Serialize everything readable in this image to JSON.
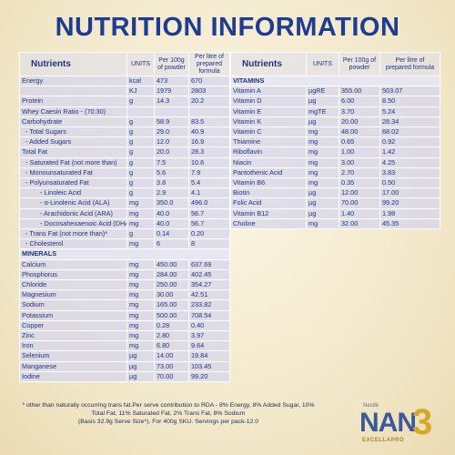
{
  "title": "NUTRITION INFORMATION",
  "left_table": {
    "headers": [
      "Nutrients",
      "UNITS",
      "Per 100g of powder",
      "Per litre of prepared formula"
    ],
    "rows": [
      [
        "Energy",
        "kcal",
        "473",
        "670"
      ],
      [
        null,
        "KJ",
        "1979",
        "2803"
      ],
      [
        "Protein",
        "g",
        "14.3",
        "20.2"
      ],
      [
        "Whey Caesin Ratio - (70:30)",
        null,
        null,
        null
      ],
      [
        "Carbohydrate",
        "g",
        "58.9",
        "83.5"
      ],
      [
        "- Total Sugars",
        "g",
        "29.0",
        "40.9"
      ],
      [
        "- Added Sugars",
        "g",
        "12.0",
        "16.9"
      ],
      [
        "Total Fat",
        "g",
        "20.0",
        "28.3"
      ],
      [
        "- Saturated Fat (not more than)",
        "g",
        "7.5",
        "10.6"
      ],
      [
        "- Monounsaturated Fat",
        "g",
        "5.6",
        "7.9"
      ],
      [
        "- Polyunsaturated Fat",
        "g",
        "3.8",
        "5.4"
      ],
      [
        "- Linoleic Acid",
        "g",
        "2.9",
        "4.1"
      ],
      [
        "- α-Linolenic Acid (ALA)",
        "mg",
        "350.0",
        "496.0"
      ],
      [
        "- Arachidonic Acid (ARA)",
        "mg",
        "40.0",
        "56.7"
      ],
      [
        "- Docosahexaenoic Acid (DHA)",
        "mg",
        "40.0",
        "56.7"
      ],
      [
        "- Trans Fat (not more than)*",
        "g",
        "0.14",
        "0.20"
      ],
      [
        "- Cholesterol",
        "mg",
        "6",
        "8"
      ],
      [
        "MINERALS"
      ],
      [
        "Calcium",
        "mg",
        "450.00",
        "637.69"
      ],
      [
        "Phosphorus",
        "mg",
        "284.00",
        "402.45"
      ],
      [
        "Chloride",
        "mg",
        "250.00",
        "354.27"
      ],
      [
        "Magnesium",
        "mg",
        "30.00",
        "42.51"
      ],
      [
        "Sodium",
        "mg",
        "165.00",
        "233.82"
      ],
      [
        "Potassium",
        "mg",
        "500.00",
        "708.54"
      ],
      [
        "Copper",
        "mg",
        "0.28",
        "0.40"
      ],
      [
        "Zinc",
        "mg",
        "2.80",
        "3.97"
      ],
      [
        "Iron",
        "mg",
        "6.80",
        "9.64"
      ],
      [
        "Selenium",
        "µg",
        "14.00",
        "19.84"
      ],
      [
        "Manganese",
        "µg",
        "73.00",
        "103.45"
      ],
      [
        "Iodine",
        "µg",
        "70.00",
        "99.20"
      ]
    ]
  },
  "right_table": {
    "headers": [
      "Nutrients",
      "UNITS",
      "Per 100g of powder",
      "Per litre of prepared formula"
    ],
    "rows": [
      [
        "VITAMINS"
      ],
      [
        "Vitamin A",
        "µgRE",
        "355.00",
        "503.07"
      ],
      [
        "Vitamin D",
        "µg",
        "6.00",
        "8.50"
      ],
      [
        "Vitamin E",
        "mgTE",
        "3.70",
        "5.24"
      ],
      [
        "Vitamin K",
        "µg",
        "20.00",
        "28.34"
      ],
      [
        "Vitamin C",
        "mg",
        "48.00",
        "68.02"
      ],
      [
        "Thiamine",
        "mg",
        "0.65",
        "0.92"
      ],
      [
        "Riboflavin",
        "mg",
        "1.00",
        "1.42"
      ],
      [
        "Niacin",
        "mg",
        "3.00",
        "4.25"
      ],
      [
        "Pantothenic Acid",
        "mg",
        "2.70",
        "3.83"
      ],
      [
        "Vitamin B6",
        "mg",
        "0.35",
        "0.50"
      ],
      [
        "Biotin",
        "µg",
        "12.00",
        "17.00"
      ],
      [
        "Folic Acid",
        "µg",
        "70.00",
        "99.20"
      ],
      [
        "Vitamin B12",
        "µg",
        "1.40",
        "1.98"
      ],
      [
        "Choline",
        "mg",
        "32.00",
        "45.35"
      ]
    ]
  },
  "footnote": [
    "* other than naturally occurring trans fat.Per serve contribution to RDA - 8% Energy, 8% Added Sugar, 10%",
    "Total Fat, 11% Saturated Fat, 2% Trans Fat, 8% Sodium",
    "(Basis 32.9g Serve Size*). For 400g SKU. Servings per pack-12.0"
  ],
  "brand": {
    "maker": "Nestlé",
    "name": "NAN",
    "stage": "3",
    "sub": "EXCELLAPRO"
  }
}
